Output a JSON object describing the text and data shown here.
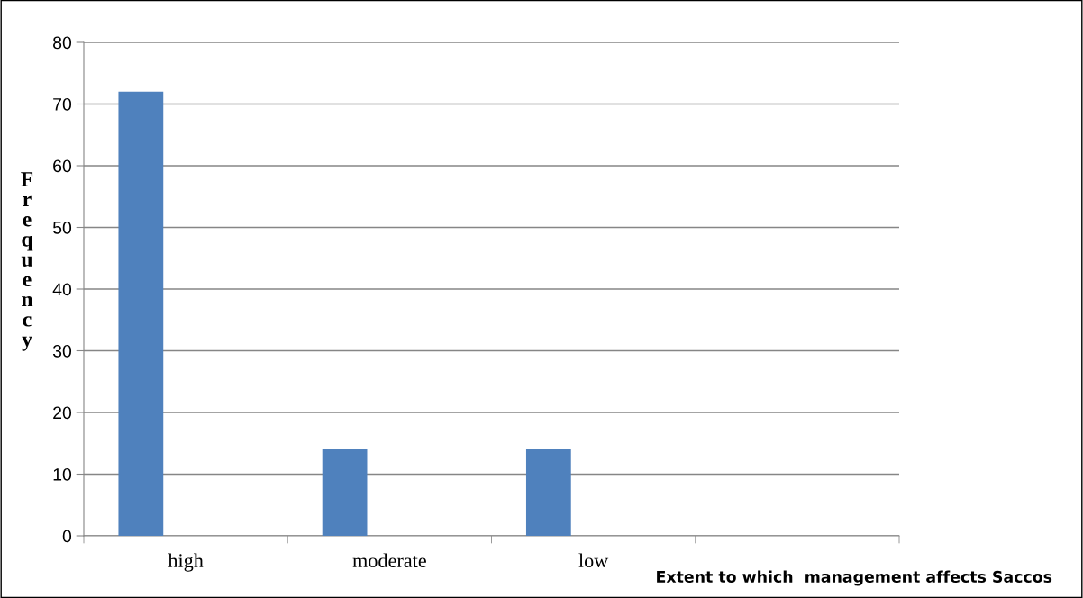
{
  "chart_data": {
    "type": "bar",
    "xlabel": "Extent to which  management affects Saccos",
    "ylabel": "Frequency",
    "categories": [
      "high",
      "moderate",
      "low",
      null
    ],
    "values": [
      72,
      14,
      14,
      null
    ],
    "color": "#4f81bd",
    "ylim": [
      0,
      80
    ],
    "yticks": [
      0,
      10,
      20,
      30,
      40,
      50,
      60,
      70,
      80
    ],
    "grid": "y"
  }
}
